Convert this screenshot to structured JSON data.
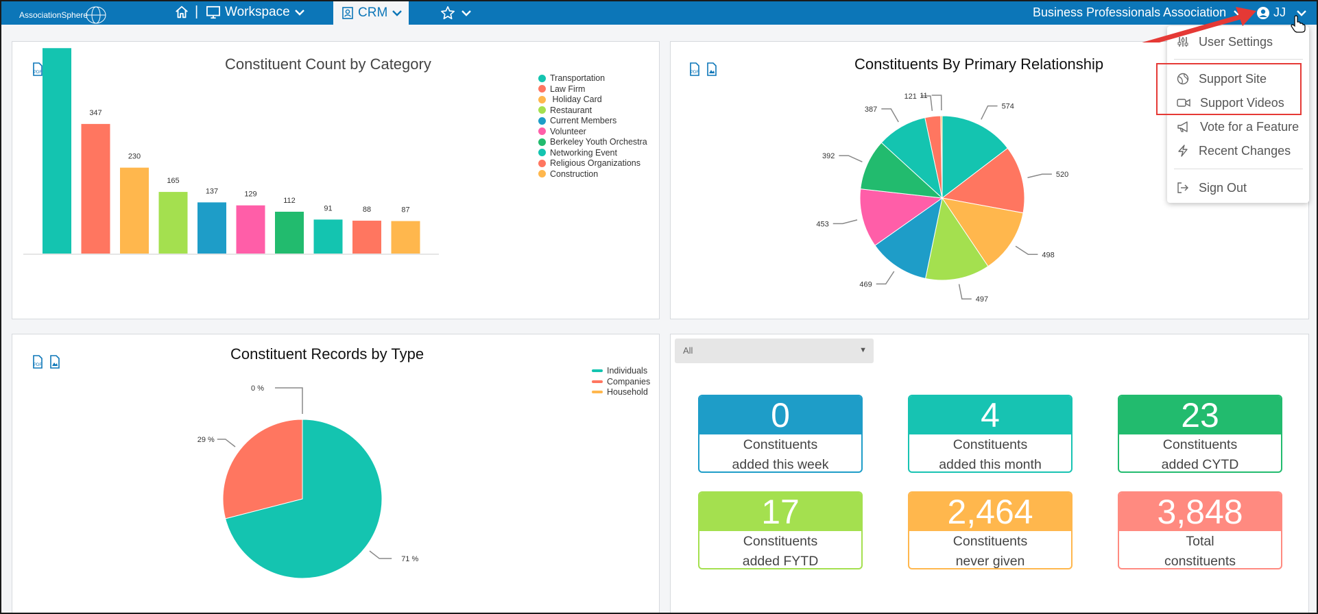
{
  "topbar": {
    "logo_text": "AssociationSphere",
    "workspace_label": "Workspace",
    "crm_label": "CRM",
    "org_name": "Business Professionals Association",
    "user_initials": "JJ"
  },
  "user_menu": {
    "items": [
      {
        "label": "User Settings",
        "icon": "sliders-icon"
      },
      {
        "label": "Support Site",
        "icon": "globe-icon"
      },
      {
        "label": "Support Videos",
        "icon": "video-icon"
      },
      {
        "label": "Vote for a Feature",
        "icon": "megaphone-icon"
      },
      {
        "label": "Recent Changes",
        "icon": "lightning-icon"
      },
      {
        "label": "Sign Out",
        "icon": "sign-out-icon"
      }
    ]
  },
  "filter": {
    "selected": "All"
  },
  "stats": [
    {
      "value": "0",
      "line1": "Constituents",
      "line2": "added this week",
      "color": "#1e9dc8"
    },
    {
      "value": "4",
      "line1": "Constituents",
      "line2": "added this month",
      "color": "#17c3b2"
    },
    {
      "value": "23",
      "line1": "Constituents",
      "line2": "added CYTD",
      "color": "#22bb6e"
    },
    {
      "value": "17",
      "line1": "Constituents",
      "line2": "added FYTD",
      "color": "#a4e04f"
    },
    {
      "value": "2,464",
      "line1": "Constituents",
      "line2": "never given",
      "color": "#ffb74d"
    },
    {
      "value": "3,848",
      "line1": "Total",
      "line2": "constituents",
      "color": "#ff8a80"
    }
  ],
  "chart_data": [
    {
      "type": "bar",
      "title": "Constituent Count by Category",
      "categories": [
        "Transportation",
        "Law Firm",
        " Holiday Card",
        "Restaurant",
        "Current Members",
        "Volunteer",
        "Berkeley Youth Orchestra",
        "Networking Event",
        "Religious Organizations",
        "Construction"
      ],
      "values": [
        550,
        347,
        230,
        165,
        137,
        129,
        112,
        91,
        88,
        87
      ],
      "colors": [
        "#14c4b0",
        "#ff7660",
        "#ffb74d",
        "#a4e04f",
        "#1e9dc8",
        "#ff5ea8",
        "#22bb6e",
        "#14c4b0",
        "#ff7660",
        "#ffb74d"
      ],
      "ylim": [
        0,
        600
      ],
      "legend": "top-right"
    },
    {
      "type": "pie",
      "title": "Constituents By Primary Relationship",
      "values": [
        574,
        520,
        498,
        497,
        469,
        453,
        392,
        387,
        121,
        11
      ],
      "colors": [
        "#14c4b0",
        "#ff7660",
        "#ffb74d",
        "#a4e04f",
        "#1e9dc8",
        "#ff5ea8",
        "#22bb6e",
        "#14c4b0",
        "#ff7660",
        "#ffb74d"
      ]
    },
    {
      "type": "pie",
      "title": "Constituent Records by Type",
      "categories": [
        "Individuals",
        "Companies",
        "Household"
      ],
      "values": [
        71,
        29,
        0
      ],
      "labels": [
        "71 %",
        "29 %",
        "0 %"
      ],
      "colors": [
        "#14c4b0",
        "#ff7660",
        "#ffb74d"
      ],
      "legend": "top-right"
    }
  ]
}
